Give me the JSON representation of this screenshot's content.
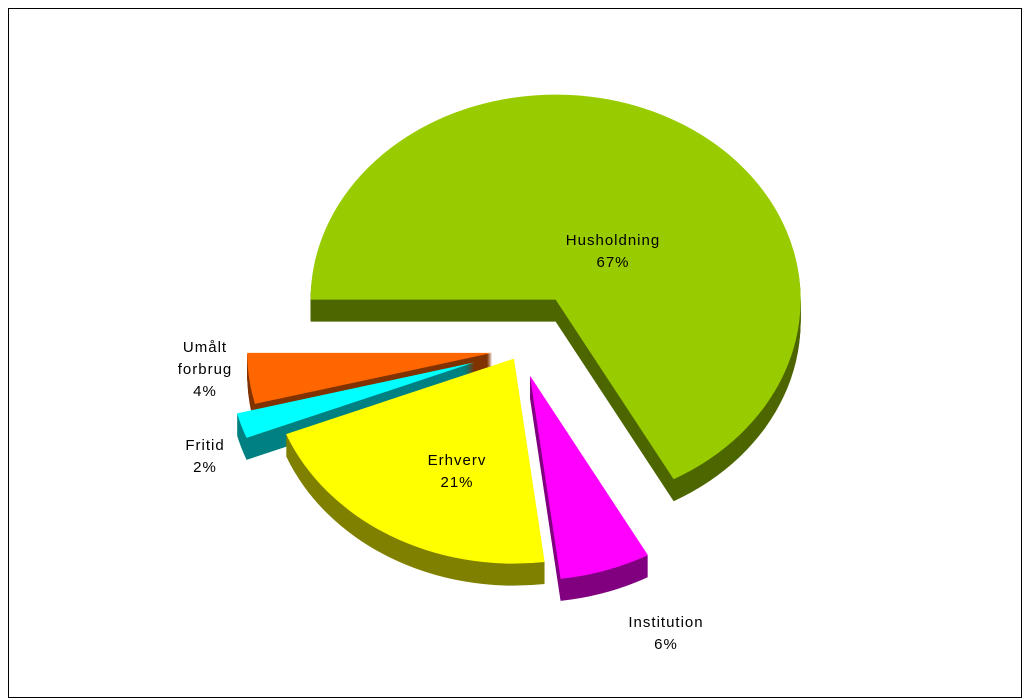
{
  "chart_data": {
    "type": "pie",
    "categories": [
      "Husholdning",
      "Institution",
      "Erhverv",
      "Fritid",
      "Umålt forbrug"
    ],
    "values": [
      67,
      6,
      21,
      2,
      4
    ],
    "value_labels": [
      "67%",
      "6%",
      "21%",
      "2%",
      "4%"
    ],
    "colors": [
      "#99cc00",
      "#ff00ff",
      "#ffff00",
      "#00ffff",
      "#ff6600"
    ]
  }
}
